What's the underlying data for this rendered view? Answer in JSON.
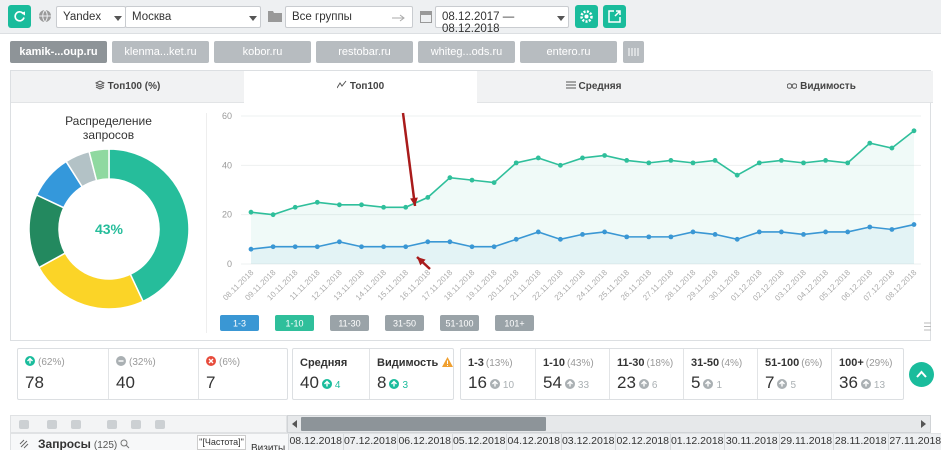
{
  "toolbar": {
    "engine": "Yandex",
    "region": "Москва",
    "group": "Все группы",
    "dates": "08.12.2017 — 08.12.2018"
  },
  "sites": [
    "kamik-...oup.ru",
    "klenma...ket.ru",
    "kobor.ru",
    "restobar.ru",
    "whiteg...ods.ru",
    "entero.ru"
  ],
  "tabs": [
    "Топ100 (%)",
    "Топ100",
    "Средняя",
    "Видимость"
  ],
  "chart_data": [
    {
      "type": "pie",
      "title": "Распределение запросов",
      "center_label": "43%",
      "values": [
        43,
        24,
        15,
        9,
        5,
        4
      ],
      "colors": [
        "#26bd9b",
        "#fbd427",
        "#23895f",
        "#3498db",
        "#b3c2c6",
        "#8fd9a0"
      ]
    },
    {
      "type": "line",
      "x": [
        "08.11.2018",
        "09.11.2018",
        "10.11.2018",
        "11.11.2018",
        "12.11.2018",
        "13.11.2018",
        "14.11.2018",
        "15.11.2018",
        "16.11.2018",
        "17.11.2018",
        "18.11.2018",
        "19.11.2018",
        "20.11.2018",
        "21.11.2018",
        "22.11.2018",
        "23.11.2018",
        "24.11.2018",
        "25.11.2018",
        "26.11.2018",
        "27.11.2018",
        "28.11.2018",
        "29.11.2018",
        "30.11.2018",
        "01.12.2018",
        "02.12.2018",
        "03.12.2018",
        "04.12.2018",
        "05.12.2018",
        "06.12.2018",
        "07.12.2018",
        "08.12.2018"
      ],
      "series": [
        {
          "name": "1-3",
          "color": "#3a97d4",
          "values": [
            6,
            7,
            7,
            7,
            9,
            7,
            7,
            7,
            9,
            9,
            7,
            7,
            10,
            13,
            10,
            12,
            13,
            11,
            11,
            11,
            13,
            12,
            10,
            13,
            13,
            12,
            13,
            13,
            15,
            14,
            16
          ]
        },
        {
          "name": "1-10",
          "color": "#2fbf9b",
          "values": [
            21,
            20,
            23,
            25,
            24,
            24,
            23,
            23,
            27,
            35,
            34,
            33,
            41,
            43,
            40,
            43,
            44,
            42,
            41,
            42,
            41,
            42,
            36,
            41,
            42,
            41,
            42,
            41,
            49,
            47,
            54
          ]
        }
      ],
      "ylim": [
        0,
        60
      ],
      "yticks": [
        0,
        20,
        40,
        60
      ],
      "grid": true,
      "area": true,
      "other_ranges": [
        "11-30",
        "31-50",
        "51-100",
        "101+"
      ]
    }
  ],
  "summary": {
    "all": [
      {
        "pct": "(62%)",
        "value": 78
      },
      {
        "pct": "(32%)",
        "value": 40
      },
      {
        "pct": "(6%)",
        "value": 7
      }
    ],
    "metrics": [
      {
        "label": "Средняя",
        "value": 40,
        "delta": 4
      },
      {
        "label": "Видимость",
        "value": 8,
        "delta": 3
      }
    ],
    "ranges": [
      {
        "label": "1-3",
        "pct": "(13%)",
        "value": 16,
        "delta": 10
      },
      {
        "label": "1-10",
        "pct": "(43%)",
        "value": 54,
        "delta": 33
      },
      {
        "label": "11-30",
        "pct": "(18%)",
        "value": 23,
        "delta": 6
      },
      {
        "label": "31-50",
        "pct": "(4%)",
        "value": 5,
        "delta": 1
      },
      {
        "label": "51-100",
        "pct": "(6%)",
        "value": 7,
        "delta": 5
      },
      {
        "label": "100+",
        "pct": "(29%)",
        "value": 36,
        "delta": 13
      }
    ]
  },
  "table": {
    "query_header": "Запросы",
    "query_count": "(125)",
    "freq": "\"[Частота]\"",
    "visits": "Визиты",
    "dates": [
      "08.12.2018",
      "07.12.2018",
      "06.12.2018",
      "05.12.2018",
      "04.12.2018",
      "03.12.2018",
      "02.12.2018",
      "01.12.2018",
      "30.11.2018",
      "29.11.2018",
      "28.11.2018",
      "27.11.2018"
    ]
  }
}
